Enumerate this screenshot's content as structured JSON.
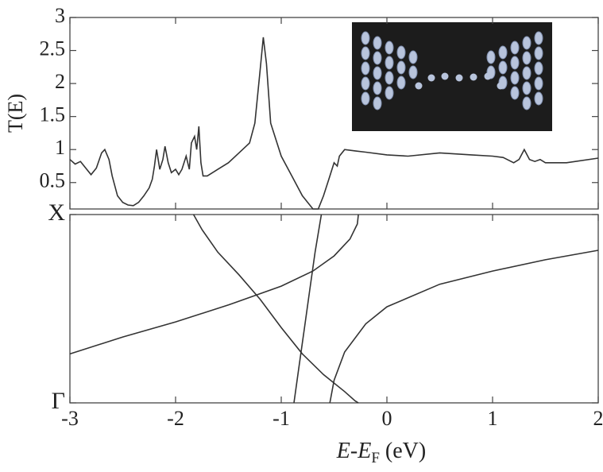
{
  "chart_data": [
    {
      "type": "line",
      "ylabel": "T(E)",
      "color": "#333333",
      "xlim": [
        -3,
        2
      ],
      "xticks": [
        -3,
        -2,
        -1,
        0,
        1,
        2
      ],
      "ylim": [
        0.1,
        3
      ],
      "yticks": [
        0.5,
        1,
        1.5,
        2,
        2.5,
        3
      ],
      "x": [
        -3.0,
        -2.95,
        -2.9,
        -2.85,
        -2.8,
        -2.75,
        -2.7,
        -2.67,
        -2.63,
        -2.6,
        -2.55,
        -2.5,
        -2.45,
        -2.4,
        -2.35,
        -2.3,
        -2.25,
        -2.22,
        -2.2,
        -2.18,
        -2.15,
        -2.12,
        -2.1,
        -2.07,
        -2.04,
        -2.0,
        -1.97,
        -1.94,
        -1.9,
        -1.87,
        -1.85,
        -1.82,
        -1.8,
        -1.78,
        -1.76,
        -1.74,
        -1.7,
        -1.6,
        -1.5,
        -1.4,
        -1.3,
        -1.25,
        -1.2,
        -1.17,
        -1.14,
        -1.1,
        -1.0,
        -0.9,
        -0.8,
        -0.7,
        -0.65,
        -0.6,
        -0.55,
        -0.5,
        -0.47,
        -0.45,
        -0.4,
        -0.3,
        -0.2,
        0,
        0.2,
        0.5,
        0.8,
        1.0,
        1.1,
        1.2,
        1.25,
        1.3,
        1.35,
        1.4,
        1.45,
        1.5,
        1.7,
        2.0
      ],
      "values": [
        0.85,
        0.78,
        0.82,
        0.72,
        0.62,
        0.72,
        0.95,
        1.0,
        0.85,
        0.6,
        0.3,
        0.2,
        0.16,
        0.15,
        0.2,
        0.3,
        0.42,
        0.55,
        0.75,
        1.0,
        0.7,
        0.85,
        1.05,
        0.8,
        0.65,
        0.7,
        0.62,
        0.7,
        0.9,
        0.7,
        1.1,
        1.2,
        1.0,
        1.35,
        0.8,
        0.6,
        0.6,
        0.7,
        0.8,
        0.95,
        1.1,
        1.4,
        2.2,
        2.7,
        2.3,
        1.4,
        0.9,
        0.6,
        0.3,
        0.1,
        0.1,
        0.3,
        0.55,
        0.8,
        0.75,
        0.9,
        1.0,
        0.98,
        0.96,
        0.92,
        0.9,
        0.95,
        0.92,
        0.9,
        0.88,
        0.8,
        0.85,
        1.0,
        0.85,
        0.82,
        0.85,
        0.8,
        0.8,
        0.87
      ]
    },
    {
      "type": "line",
      "xlabel": {
        "main": "E-E",
        "subscript": "F",
        "unit": "(eV)"
      },
      "xlim": [
        -3,
        2
      ],
      "xticks": [
        -3,
        -2,
        -1,
        0,
        1,
        2
      ],
      "ylim": [
        0,
        1
      ],
      "yticks": [
        {
          "value": 0,
          "label": "Γ"
        },
        {
          "value": 1,
          "label": "X"
        }
      ],
      "series": [
        {
          "color": "#333333",
          "x": [
            -3,
            -2.5,
            -2,
            -1.5,
            -1,
            -0.7,
            -0.5,
            -0.35,
            -0.28,
            -0.27
          ],
          "values": [
            0.26,
            0.35,
            0.43,
            0.52,
            0.62,
            0.7,
            0.78,
            0.87,
            0.95,
            1
          ]
        },
        {
          "color": "#333333",
          "x": [
            -1.83,
            -1.75,
            -1.6,
            -1.4,
            -1.2,
            -1.0,
            -0.8,
            -0.6,
            -0.4,
            -0.3,
            -0.27
          ],
          "values": [
            1,
            0.92,
            0.8,
            0.68,
            0.55,
            0.4,
            0.26,
            0.15,
            0.06,
            0.01,
            0
          ]
        },
        {
          "color": "#333333",
          "x": [
            -0.88,
            -0.83,
            -0.78,
            -0.73,
            -0.68,
            -0.62
          ],
          "values": [
            0,
            0.2,
            0.4,
            0.6,
            0.8,
            1
          ]
        },
        {
          "color": "#333333",
          "x": [
            -0.54,
            -0.5,
            -0.4,
            -0.2,
            0,
            0.5,
            1,
            1.5,
            2
          ],
          "values": [
            0,
            0.12,
            0.27,
            0.42,
            0.51,
            0.63,
            0.7,
            0.76,
            0.81
          ]
        }
      ]
    }
  ]
}
